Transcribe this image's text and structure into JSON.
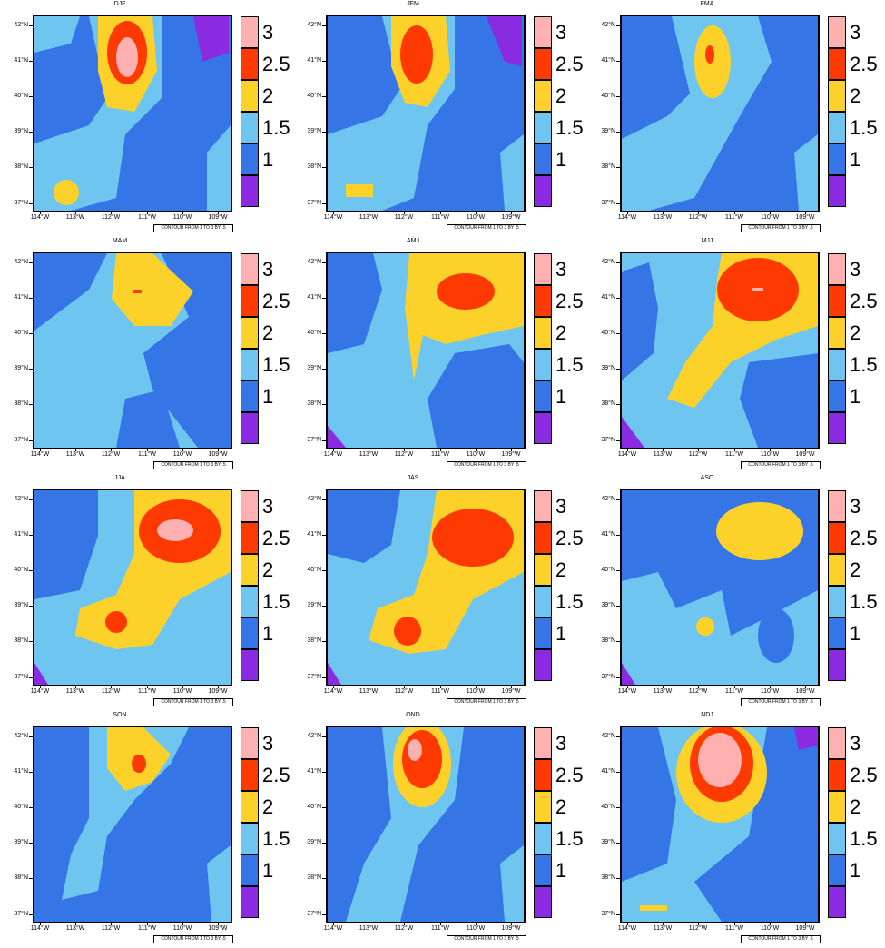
{
  "colors": {
    "lt1": "#8a2be2",
    "1to1.5": "#3575e6",
    "1.5to2": "#6ec6f0",
    "2to2.5": "#fcd22a",
    "2.5to3": "#ff3a00",
    "gt3": "#ffb0b0"
  },
  "chart_data": [
    {
      "type": "heatmap",
      "title": "DJF",
      "annotation": "CONTOUR FROM 1 TO 3 BY .5"
    },
    {
      "type": "heatmap",
      "title": "JFM",
      "annotation": "CONTOUR FROM 1 TO 3 BY .5"
    },
    {
      "type": "heatmap",
      "title": "FMA",
      "annotation": "CONTOUR FROM 1 TO 3 BY .5"
    },
    {
      "type": "heatmap",
      "title": "MAM",
      "annotation": "CONTOUR FROM 1 TO 3 BY .5"
    },
    {
      "type": "heatmap",
      "title": "AMJ",
      "annotation": "CONTOUR FROM 1 TO 3 BY .5"
    },
    {
      "type": "heatmap",
      "title": "MJJ",
      "annotation": "CONTOUR FROM 1 TO 3 BY .5"
    },
    {
      "type": "heatmap",
      "title": "JJA",
      "annotation": "CONTOUR FROM 1 TO 3 BY .5"
    },
    {
      "type": "heatmap",
      "title": "JAS",
      "annotation": "CONTOUR FROM 1 TO 3 BY .5"
    },
    {
      "type": "heatmap",
      "title": "ASO",
      "annotation": "CONTOUR FROM 1 TO 3 BY .5"
    },
    {
      "type": "heatmap",
      "title": "SON",
      "annotation": "CONTOUR FROM 1 TO 3 BY .5"
    },
    {
      "type": "heatmap",
      "title": "OND",
      "annotation": "CONTOUR FROM 1 TO 3 BY .5"
    },
    {
      "type": "heatmap",
      "title": "NDJ",
      "annotation": "CONTOUR FROM 1 TO 3 BY .5"
    }
  ],
  "axes": {
    "y_ticks": [
      "42°N",
      "41°N",
      "40°N",
      "39°N",
      "38°N",
      "37°N"
    ],
    "x_ticks": [
      "114°W",
      "113°W",
      "112°W",
      "111°W",
      "110°W",
      "109°W"
    ],
    "ylim": [
      36.8,
      42.2
    ],
    "xlim": [
      114.3,
      108.9
    ]
  },
  "legend": {
    "levels": [
      "3",
      "2.5",
      "2",
      "1.5",
      "1"
    ],
    "boxes": [
      "gt3",
      "2.5to3",
      "2to2.5",
      "1.5to2",
      "1to1.5",
      "lt1"
    ]
  }
}
